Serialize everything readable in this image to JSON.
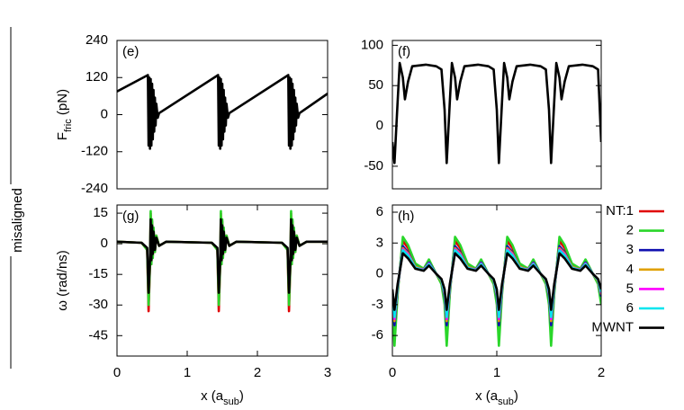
{
  "row_label": "misaligned",
  "chart_data": [
    {
      "type": "line",
      "label": "(e)",
      "ylabel": [
        "F",
        "fric",
        " (pN)"
      ],
      "xlim": [
        0,
        3
      ],
      "ylim": [
        -240,
        240
      ],
      "yticks": [
        -240,
        -120,
        0,
        120,
        240
      ],
      "x": [
        0,
        0.44,
        0.45,
        0.46,
        0.47,
        0.48,
        0.49,
        0.5,
        0.51,
        0.52,
        0.53,
        0.54,
        0.55,
        0.56,
        0.58,
        0.6,
        1.44,
        1.45,
        1.46,
        1.47,
        1.48,
        1.49,
        1.5,
        1.51,
        1.52,
        1.53,
        1.54,
        1.55,
        1.56,
        1.58,
        1.6,
        2.44,
        2.45,
        2.46,
        2.47,
        2.48,
        2.49,
        2.5,
        2.51,
        2.52,
        2.53,
        2.54,
        2.55,
        2.56,
        2.58,
        2.6,
        3
      ],
      "series": [
        {
          "color": "#000000",
          "values": [
            75,
            128,
            -100,
            120,
            -110,
            115,
            -100,
            100,
            -80,
            80,
            -55,
            55,
            -35,
            35,
            -10,
            5,
            128,
            -100,
            120,
            -110,
            115,
            -100,
            100,
            -80,
            80,
            -55,
            55,
            -35,
            35,
            -10,
            5,
            128,
            -100,
            120,
            -110,
            115,
            -100,
            100,
            -80,
            80,
            -55,
            55,
            -35,
            35,
            -10,
            5,
            68
          ]
        }
      ]
    },
    {
      "type": "line",
      "label": "(f)",
      "xlim": [
        0,
        2
      ],
      "ylim": [
        -78,
        106
      ],
      "yticks": [
        -50,
        0,
        50,
        100
      ],
      "x": [
        0,
        0.02,
        0.05,
        0.07,
        0.1,
        0.12,
        0.15,
        0.19,
        0.32,
        0.42,
        0.47,
        0.5,
        0.52,
        0.55,
        0.57,
        0.6,
        0.62,
        0.65,
        0.69,
        0.82,
        0.92,
        0.97,
        1,
        1.02,
        1.05,
        1.07,
        1.1,
        1.12,
        1.15,
        1.19,
        1.32,
        1.42,
        1.47,
        1.5,
        1.52,
        1.55,
        1.57,
        1.6,
        1.62,
        1.65,
        1.69,
        1.82,
        1.92,
        1.97,
        2
      ],
      "series": [
        {
          "color": "#000000",
          "values": [
            -20,
            -46,
            30,
            78,
            60,
            33,
            55,
            74,
            76,
            74,
            70,
            20,
            -46,
            30,
            78,
            60,
            33,
            55,
            74,
            76,
            74,
            70,
            20,
            -46,
            30,
            78,
            60,
            33,
            55,
            74,
            76,
            74,
            70,
            20,
            -46,
            30,
            78,
            60,
            33,
            55,
            74,
            76,
            74,
            70,
            -20
          ]
        }
      ]
    },
    {
      "type": "line",
      "label": "(g)",
      "ylabel": [
        "ω (rad/ns)"
      ],
      "xlabel": [
        "x (a",
        "sub",
        ")"
      ],
      "xlim": [
        0,
        3
      ],
      "xticks": [
        0,
        1,
        2,
        3
      ],
      "ylim": [
        -55,
        19
      ],
      "yticks": [
        -45,
        -30,
        -15,
        0,
        15
      ],
      "x": [
        0,
        0.35,
        0.43,
        0.45,
        0.47,
        0.48,
        0.49,
        0.5,
        0.51,
        0.52,
        0.54,
        0.56,
        0.6,
        0.7,
        1.35,
        1.43,
        1.45,
        1.47,
        1.48,
        1.49,
        1.5,
        1.51,
        1.52,
        1.54,
        1.56,
        1.6,
        1.7,
        2.35,
        2.43,
        2.45,
        2.47,
        2.48,
        2.49,
        2.5,
        2.51,
        2.52,
        2.54,
        2.56,
        2.6,
        2.7,
        3
      ],
      "series": [
        {
          "color": "#e00000",
          "values": [
            1,
            0.5,
            -3,
            -33,
            -10,
            15,
            -10,
            11,
            -6,
            7,
            -4,
            4,
            -1,
            1,
            0.5,
            -3,
            -33,
            -10,
            15,
            -10,
            11,
            -6,
            7,
            -4,
            4,
            -1,
            1,
            0.5,
            -3,
            -33,
            -10,
            15,
            -10,
            11,
            -6,
            7,
            -4,
            4,
            -1,
            1,
            1
          ]
        },
        {
          "color": "#2ad62a",
          "values": [
            1,
            0.5,
            -3,
            -30,
            -10,
            16,
            -10,
            12,
            -7,
            8,
            -4,
            4,
            -1,
            1,
            0.5,
            -3,
            -30,
            -10,
            16,
            -10,
            12,
            -7,
            8,
            -4,
            4,
            -1,
            1,
            0.5,
            -3,
            -30,
            -10,
            16,
            -10,
            12,
            -7,
            8,
            -4,
            4,
            -1,
            1,
            1
          ]
        },
        {
          "color": "#000000",
          "values": [
            1,
            0.5,
            -2,
            -24,
            -8,
            12,
            -8,
            9,
            -5,
            6,
            -3,
            3,
            -1,
            1,
            0.5,
            -2,
            -24,
            -8,
            12,
            -8,
            9,
            -5,
            6,
            -3,
            3,
            -1,
            1,
            0.5,
            -2,
            -24,
            -8,
            12,
            -8,
            9,
            -5,
            6,
            -3,
            3,
            -1,
            1,
            1
          ]
        }
      ]
    },
    {
      "type": "line",
      "label": "(h)",
      "xlabel": [
        "x (a",
        "sub",
        ")"
      ],
      "legend": "right",
      "xlim": [
        0,
        2
      ],
      "xticks": [
        0,
        1,
        2
      ],
      "ylim": [
        -8,
        6.7
      ],
      "yticks": [
        -6,
        -3,
        0,
        3,
        6
      ],
      "x": [
        0,
        0.02,
        0.05,
        0.1,
        0.15,
        0.22,
        0.3,
        0.35,
        0.42,
        0.47,
        0.5,
        0.52,
        0.55,
        0.6,
        0.65,
        0.72,
        0.8,
        0.85,
        0.92,
        0.97,
        1,
        1.02,
        1.05,
        1.1,
        1.15,
        1.22,
        1.3,
        1.35,
        1.42,
        1.47,
        1.5,
        1.52,
        1.55,
        1.6,
        1.65,
        1.72,
        1.8,
        1.85,
        1.92,
        1.97,
        2
      ],
      "series": [
        {
          "name": "NT:1",
          "color": "#e00000",
          "values": [
            -2.6,
            -6,
            -1.7,
            3.2,
            2.5,
            0.9,
            0.5,
            1.3,
            0,
            -0.9,
            -2.6,
            -6,
            -1.7,
            3.2,
            2.5,
            0.9,
            0.5,
            1.3,
            0,
            -0.9,
            -2.6,
            -6,
            -1.7,
            3.2,
            2.5,
            0.9,
            0.5,
            1.3,
            0,
            -0.9,
            -2.6,
            -6,
            -1.7,
            3.2,
            2.5,
            0.9,
            0.5,
            1.3,
            0,
            -0.9,
            -2.6
          ]
        },
        {
          "name": "2",
          "color": "#2ad62a",
          "values": [
            -3,
            -7,
            -2,
            3.6,
            2.8,
            1,
            0.5,
            1.4,
            0,
            -1,
            -3,
            -7,
            -2,
            3.6,
            2.8,
            1,
            0.5,
            1.4,
            0,
            -1,
            -3,
            -7,
            -2,
            3.6,
            2.8,
            1,
            0.5,
            1.4,
            0,
            -1,
            -3,
            -7,
            -2,
            3.6,
            2.8,
            1,
            0.5,
            1.4,
            0,
            -1,
            -3
          ]
        },
        {
          "name": "3",
          "color": "#1010b0",
          "values": [
            -2.2,
            -5,
            -1.5,
            2.7,
            2.1,
            0.7,
            0.4,
            1.1,
            0,
            -0.7,
            -2.2,
            -5,
            -1.5,
            2.7,
            2.1,
            0.7,
            0.4,
            1.1,
            0,
            -0.7,
            -2.2,
            -5,
            -1.5,
            2.7,
            2.1,
            0.7,
            0.4,
            1.1,
            0,
            -0.7,
            -2.2,
            -5,
            -1.5,
            2.7,
            2.1,
            0.7,
            0.4,
            1.1,
            0,
            -0.7,
            -2.2
          ]
        },
        {
          "name": "4",
          "color": "#e0a000",
          "values": [
            -2,
            -4.6,
            -1.4,
            2.5,
            2,
            0.7,
            0.4,
            1,
            0,
            -0.7,
            -2,
            -4.6,
            -1.4,
            2.5,
            2,
            0.7,
            0.4,
            1,
            0,
            -0.7,
            -2,
            -4.6,
            -1.4,
            2.5,
            2,
            0.7,
            0.4,
            1,
            0,
            -0.7,
            -2,
            -4.6,
            -1.4,
            2.5,
            2,
            0.7,
            0.4,
            1,
            0,
            -0.7,
            -2
          ]
        },
        {
          "name": "5",
          "color": "#ff00ff",
          "values": [
            -1.9,
            -4.4,
            -1.3,
            2.4,
            1.9,
            0.6,
            0.4,
            1,
            0,
            -0.6,
            -1.9,
            -4.4,
            -1.3,
            2.4,
            1.9,
            0.6,
            0.4,
            1,
            0,
            -0.6,
            -1.9,
            -4.4,
            -1.3,
            2.4,
            1.9,
            0.6,
            0.4,
            1,
            0,
            -0.6,
            -1.9,
            -4.4,
            -1.3,
            2.4,
            1.9,
            0.6,
            0.4,
            1,
            0,
            -0.6,
            -1.9
          ]
        },
        {
          "name": "6",
          "color": "#00e5ee",
          "values": [
            -1.8,
            -4.2,
            -1.2,
            2.3,
            1.8,
            0.6,
            0.35,
            0.95,
            0,
            -0.6,
            -1.8,
            -4.2,
            -1.2,
            2.3,
            1.8,
            0.6,
            0.35,
            0.95,
            0,
            -0.6,
            -1.8,
            -4.2,
            -1.2,
            2.3,
            1.8,
            0.6,
            0.35,
            0.95,
            0,
            -0.6,
            -1.8,
            -4.2,
            -1.2,
            2.3,
            1.8,
            0.6,
            0.35,
            0.95,
            0,
            -0.6,
            -1.8
          ]
        },
        {
          "name": "MWNT",
          "color": "#000000",
          "values": [
            -1.5,
            -3.5,
            -1,
            2,
            1.5,
            0.5,
            0.3,
            0.8,
            0,
            -0.5,
            -1.5,
            -3.5,
            -1,
            2,
            1.5,
            0.5,
            0.3,
            0.8,
            0,
            -0.5,
            -1.5,
            -3.5,
            -1,
            2,
            1.5,
            0.5,
            0.3,
            0.8,
            0,
            -0.5,
            -1.5,
            -3.5,
            -1,
            2,
            1.5,
            0.5,
            0.3,
            0.8,
            0,
            -0.5,
            -1.5
          ]
        }
      ]
    }
  ]
}
